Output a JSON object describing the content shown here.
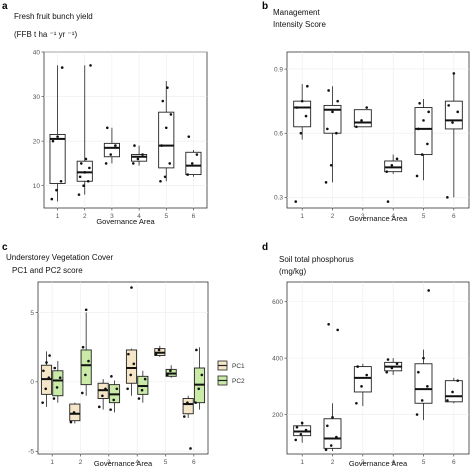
{
  "chart_data": [
    {
      "panel": "a",
      "type": "box",
      "title_lines": [
        "Fresh fruit bunch yield",
        "(FFB t ha ⁻¹ yr ⁻¹)"
      ],
      "xlabel": "Governance Area",
      "categories": [
        "1",
        "2",
        "3",
        "4",
        "5",
        "6"
      ],
      "ylim": [
        5,
        40
      ],
      "yticks": [
        10,
        20,
        30,
        40
      ],
      "boxes": [
        {
          "q1": 10.5,
          "med": 20.5,
          "q3": 21.5,
          "lo": 6.5,
          "hi": 37,
          "fill": "#ffffff",
          "points": [
            7,
            9,
            11,
            20,
            21,
            36.5
          ]
        },
        {
          "q1": 11,
          "med": 13,
          "q3": 15.5,
          "lo": 8,
          "hi": 37,
          "fill": "#ffffff",
          "points": [
            8,
            10,
            11,
            12,
            13,
            14,
            15,
            16,
            37
          ]
        },
        {
          "q1": 16.5,
          "med": 18.5,
          "q3": 19.5,
          "lo": 15,
          "hi": 23,
          "fill": "#ffffff",
          "points": [
            15,
            17,
            19,
            23
          ]
        },
        {
          "q1": 15.5,
          "med": 16.5,
          "q3": 17,
          "lo": 14.5,
          "hi": 19,
          "fill": "#ffffff",
          "points": [
            15,
            16,
            17,
            19
          ]
        },
        {
          "q1": 14,
          "med": 19,
          "q3": 26.5,
          "lo": 11,
          "hi": 33.5,
          "fill": "#ffffff",
          "points": [
            11,
            12,
            15,
            19,
            23,
            26,
            29,
            32
          ]
        },
        {
          "q1": 12.5,
          "med": 14.5,
          "q3": 17.5,
          "lo": 12,
          "hi": 18,
          "fill": "#ffffff",
          "points": [
            12.5,
            15,
            17,
            21
          ]
        }
      ]
    },
    {
      "panel": "b",
      "type": "box",
      "title_lines": [
        "Management",
        "Intensity Score"
      ],
      "xlabel": "Governance Area",
      "categories": [
        "1",
        "2",
        "3",
        "4",
        "5",
        "6"
      ],
      "ylim": [
        0.25,
        0.98
      ],
      "yticks": [
        0.3,
        0.6,
        0.9
      ],
      "boxes": [
        {
          "q1": 0.63,
          "med": 0.72,
          "q3": 0.75,
          "lo": 0.57,
          "hi": 0.83,
          "fill": "#ffffff",
          "points": [
            0.28,
            0.6,
            0.68,
            0.72,
            0.75,
            0.82
          ]
        },
        {
          "q1": 0.6,
          "med": 0.71,
          "q3": 0.73,
          "lo": 0.37,
          "hi": 0.82,
          "fill": "#ffffff",
          "points": [
            0.37,
            0.45,
            0.6,
            0.62,
            0.7,
            0.75,
            0.8
          ]
        },
        {
          "q1": 0.63,
          "med": 0.65,
          "q3": 0.71,
          "lo": 0.63,
          "hi": 0.71,
          "fill": "#ffffff",
          "points": [
            0.63,
            0.66,
            0.72
          ]
        },
        {
          "q1": 0.42,
          "med": 0.44,
          "q3": 0.47,
          "lo": 0.41,
          "hi": 0.5,
          "fill": "#ffffff",
          "points": [
            0.42,
            0.45,
            0.48,
            0.28
          ]
        },
        {
          "q1": 0.5,
          "med": 0.62,
          "q3": 0.72,
          "lo": 0.38,
          "hi": 0.76,
          "fill": "#ffffff",
          "points": [
            0.4,
            0.5,
            0.55,
            0.62,
            0.66,
            0.7,
            0.74
          ]
        },
        {
          "q1": 0.62,
          "med": 0.66,
          "q3": 0.75,
          "lo": 0.3,
          "hi": 0.88,
          "fill": "#ffffff",
          "points": [
            0.3,
            0.65,
            0.7,
            0.73,
            0.88
          ]
        }
      ]
    },
    {
      "panel": "c",
      "type": "box",
      "title_lines": [
        "Understorey Vegetation Cover",
        "PC1 and PC2 score"
      ],
      "xlabel": "Governance Area",
      "categories": [
        "1",
        "2",
        "3",
        "4",
        "5",
        "6"
      ],
      "ylim": [
        -5.2,
        7.2
      ],
      "yticks": [
        -5,
        0,
        5
      ],
      "legend": [
        {
          "label": "PC1",
          "fill": "#f5e6c8"
        },
        {
          "label": "PC2",
          "fill": "#c9eba7"
        }
      ],
      "boxes": [
        {
          "q1": -0.9,
          "med": 0.2,
          "q3": 1.2,
          "lo": -1.8,
          "hi": 2.2,
          "fill": "#f5e6c8",
          "points": [
            -1.5,
            -0.5,
            0.3,
            0.8,
            1.4,
            1.9
          ]
        },
        {
          "q1": -1.0,
          "med": 0.1,
          "q3": 0.8,
          "lo": -1.5,
          "hi": 1.5,
          "fill": "#c9eba7",
          "points": [
            -1.2,
            -0.4,
            0.3,
            1.0
          ]
        },
        {
          "q1": -2.8,
          "med": -2.3,
          "q3": -1.6,
          "lo": -3.0,
          "hi": -1.5,
          "fill": "#f5e6c8",
          "points": [
            -2.9,
            -2.2
          ]
        },
        {
          "q1": -0.2,
          "med": 1.2,
          "q3": 2.3,
          "lo": -1.0,
          "hi": 5.0,
          "fill": "#c9eba7",
          "points": [
            -0.8,
            0.5,
            1.5,
            2.5,
            5.2
          ]
        },
        {
          "q1": -1.2,
          "med": -0.6,
          "q3": -0.1,
          "lo": -2.0,
          "hi": 0.2,
          "fill": "#f5e6c8",
          "points": [
            -1.8,
            -1.0,
            -0.5
          ]
        },
        {
          "q1": -1.5,
          "med": -0.9,
          "q3": -0.2,
          "lo": -2.2,
          "hi": 0.1,
          "fill": "#c9eba7",
          "points": [
            -2.0,
            -1.3,
            -0.5,
            0.4
          ]
        },
        {
          "q1": -0.1,
          "med": 1.0,
          "q3": 2.3,
          "lo": -1.0,
          "hi": 2.4,
          "fill": "#f5e6c8",
          "points": [
            -0.5,
            0.5,
            1.3,
            2.0,
            6.8
          ]
        },
        {
          "q1": -0.9,
          "med": -0.3,
          "q3": 0.4,
          "lo": -1.5,
          "hi": 0.8,
          "fill": "#c9eba7",
          "points": [
            -1.2,
            -0.6,
            0.2
          ]
        },
        {
          "q1": 1.9,
          "med": 2.1,
          "q3": 2.4,
          "lo": 1.8,
          "hi": 2.6,
          "fill": "#f5e6c8",
          "points": [
            2.0,
            2.3
          ]
        },
        {
          "q1": 0.4,
          "med": 0.6,
          "q3": 0.9,
          "lo": 0.3,
          "hi": 1.2,
          "fill": "#c9eba7",
          "points": [
            0.5,
            0.8
          ]
        },
        {
          "q1": -2.3,
          "med": -1.6,
          "q3": -1.2,
          "lo": -2.6,
          "hi": -1.0,
          "fill": "#f5e6c8",
          "points": [
            -2.5,
            -1.5,
            -4.8
          ]
        },
        {
          "q1": -1.5,
          "med": -0.2,
          "q3": 1.0,
          "lo": -2.0,
          "hi": 2.5,
          "fill": "#c9eba7",
          "points": [
            -1.5,
            -0.5,
            0.5,
            2.3
          ]
        }
      ]
    },
    {
      "panel": "d",
      "type": "box",
      "title_lines": [
        "Soil total phosphorus",
        "(mg/kg)"
      ],
      "xlabel": "Governance Area",
      "categories": [
        "1",
        "2",
        "3",
        "4",
        "5",
        "6"
      ],
      "ylim": [
        60,
        670
      ],
      "yticks": [
        200,
        400,
        600
      ],
      "boxes": [
        {
          "q1": 125,
          "med": 140,
          "q3": 160,
          "lo": 100,
          "hi": 175,
          "fill": "#ffffff",
          "points": [
            110,
            130,
            145,
            155,
            170
          ]
        },
        {
          "q1": 80,
          "med": 115,
          "q3": 185,
          "lo": 70,
          "hi": 240,
          "fill": "#ffffff",
          "points": [
            75,
            90,
            120,
            160,
            190,
            500,
            520
          ]
        },
        {
          "q1": 280,
          "med": 330,
          "q3": 370,
          "lo": 230,
          "hi": 380,
          "fill": "#ffffff",
          "points": [
            240,
            300,
            340,
            370
          ]
        },
        {
          "q1": 355,
          "med": 370,
          "q3": 385,
          "lo": 340,
          "hi": 400,
          "fill": "#ffffff",
          "points": [
            350,
            365,
            380,
            395
          ]
        },
        {
          "q1": 240,
          "med": 290,
          "q3": 380,
          "lo": 180,
          "hi": 430,
          "fill": "#ffffff",
          "points": [
            200,
            250,
            300,
            350,
            400,
            640
          ]
        },
        {
          "q1": 245,
          "med": 265,
          "q3": 320,
          "lo": 240,
          "hi": 330,
          "fill": "#ffffff",
          "points": [
            250,
            280,
            320
          ]
        }
      ]
    }
  ]
}
